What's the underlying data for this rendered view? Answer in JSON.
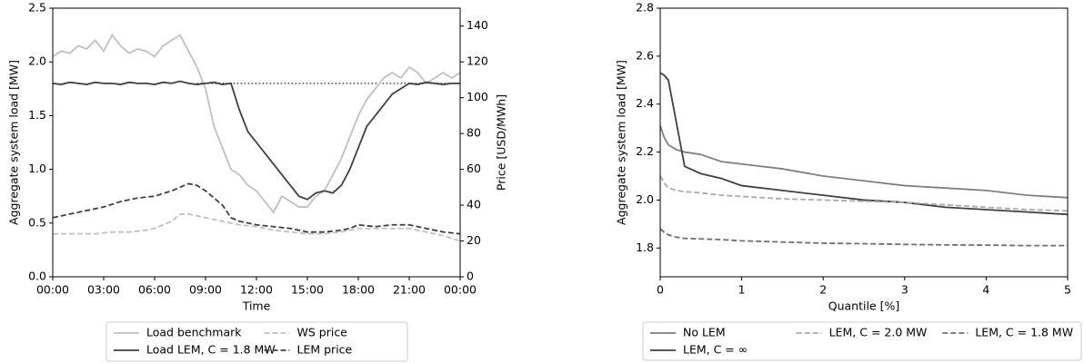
{
  "chart_data": [
    {
      "type": "line",
      "x_label": "Time",
      "y_label": "Aggregate system load [MW]",
      "y2_label": "Price [USD/MWh]",
      "x": [
        0,
        0.5,
        1,
        1.5,
        2,
        2.5,
        3,
        3.5,
        4,
        4.5,
        5,
        5.5,
        6,
        6.5,
        7,
        7.5,
        8,
        8.5,
        9,
        9.5,
        10,
        10.5,
        11,
        11.5,
        12,
        12.5,
        13,
        13.5,
        14,
        14.5,
        15,
        15.5,
        16,
        16.5,
        17,
        17.5,
        18,
        18.5,
        19,
        19.5,
        20,
        20.5,
        21,
        21.5,
        22,
        22.5,
        23,
        23.5,
        24
      ],
      "xlim": [
        0,
        24
      ],
      "xticks": [
        {
          "value": 0,
          "label": "00:00"
        },
        {
          "value": 3,
          "label": "03:00"
        },
        {
          "value": 6,
          "label": "06:00"
        },
        {
          "value": 9,
          "label": "09:00"
        },
        {
          "value": 12,
          "label": "12:00"
        },
        {
          "value": 15,
          "label": "15:00"
        },
        {
          "value": 18,
          "label": "18:00"
        },
        {
          "value": 21,
          "label": "21:00"
        },
        {
          "value": 24,
          "label": "00:00"
        }
      ],
      "ylim": [
        0,
        2.5
      ],
      "yticks": [
        {
          "value": 0,
          "label": "0.0"
        },
        0.5,
        {
          "value": 1,
          "label": "1.0"
        },
        1.5,
        {
          "value": 2,
          "label": "2.0"
        },
        2.5
      ],
      "y2lim": [
        0,
        150
      ],
      "y2ticks": [
        0,
        20,
        40,
        60,
        80,
        100,
        120,
        140
      ],
      "hline": {
        "y": 1.8,
        "x": [
          8.5,
          24
        ],
        "style": "dotted",
        "color": "#404040"
      },
      "legend": "below",
      "series": [
        {
          "name": "Load benchmark",
          "color": "#c0c0c0",
          "dash": false,
          "axis": "y",
          "values": [
            2.05,
            2.1,
            2.08,
            2.15,
            2.12,
            2.2,
            2.1,
            2.25,
            2.15,
            2.08,
            2.12,
            2.1,
            2.05,
            2.15,
            2.2,
            2.25,
            2.1,
            1.95,
            1.75,
            1.4,
            1.2,
            1.0,
            0.95,
            0.85,
            0.8,
            0.7,
            0.6,
            0.75,
            0.7,
            0.65,
            0.65,
            0.75,
            0.8,
            0.95,
            1.1,
            1.3,
            1.5,
            1.65,
            1.75,
            1.85,
            1.9,
            1.85,
            1.95,
            1.9,
            1.8,
            1.85,
            1.9,
            1.85,
            1.9
          ]
        },
        {
          "name": "Load LEM, C = 1.8 MW",
          "color": "#404040",
          "dash": false,
          "axis": "y",
          "values": [
            1.8,
            1.79,
            1.81,
            1.8,
            1.79,
            1.81,
            1.8,
            1.8,
            1.79,
            1.81,
            1.8,
            1.8,
            1.79,
            1.81,
            1.8,
            1.82,
            1.8,
            1.79,
            1.8,
            1.81,
            1.79,
            1.8,
            1.55,
            1.35,
            1.25,
            1.15,
            1.05,
            0.95,
            0.85,
            0.75,
            0.72,
            0.78,
            0.8,
            0.78,
            0.85,
            1.0,
            1.2,
            1.4,
            1.5,
            1.6,
            1.7,
            1.75,
            1.8,
            1.79,
            1.81,
            1.8,
            1.79,
            1.8,
            1.8
          ]
        },
        {
          "name": "WS price",
          "color": "#c0c0c0",
          "dash": true,
          "axis": "y2",
          "values": [
            24,
            24,
            24,
            24,
            24,
            24,
            24.5,
            25,
            25,
            25,
            25.5,
            26,
            27,
            29,
            31,
            35,
            35,
            34,
            33,
            32,
            31,
            30,
            29,
            28.5,
            28,
            27,
            26,
            25.5,
            25,
            24.5,
            24,
            24,
            24,
            24.5,
            25,
            26,
            27,
            27,
            27,
            27,
            27,
            27,
            27,
            26,
            25,
            24,
            23,
            21.5,
            20
          ]
        },
        {
          "name": "LEM price",
          "color": "#404040",
          "dash": true,
          "axis": "y2",
          "values": [
            33,
            34,
            35,
            36,
            37,
            38,
            39,
            40.5,
            42,
            43,
            44,
            44.5,
            45,
            46.5,
            48,
            50,
            52,
            51,
            48,
            44,
            40,
            33,
            31,
            30,
            29,
            28.5,
            28,
            27.5,
            27,
            26,
            25,
            25,
            25,
            25.5,
            26,
            27,
            29,
            28.5,
            28,
            28.5,
            29,
            29,
            29,
            28,
            27,
            26,
            25,
            24.5,
            24
          ]
        }
      ]
    },
    {
      "type": "line",
      "x_label": "Quantile [%]",
      "y_label": "Aggregate system load [MW]",
      "x": [
        0,
        0.05,
        0.1,
        0.2,
        0.3,
        0.5,
        0.75,
        1,
        1.5,
        2,
        2.5,
        3,
        3.5,
        4,
        4.5,
        5
      ],
      "xlim": [
        0,
        5
      ],
      "xticks": [
        0,
        1,
        2,
        3,
        4,
        5
      ],
      "ylim": [
        1.68,
        2.8
      ],
      "yticks": [
        1.8,
        {
          "value": 2,
          "label": "2.0"
        },
        2.2,
        2.4,
        2.6,
        2.8
      ],
      "legend": "below",
      "series": [
        {
          "name": "No LEM",
          "color": "#808080",
          "dash": false,
          "values": [
            2.31,
            2.26,
            2.23,
            2.21,
            2.2,
            2.19,
            2.16,
            2.15,
            2.13,
            2.1,
            2.08,
            2.06,
            2.05,
            2.04,
            2.02,
            2.01
          ]
        },
        {
          "name": "LEM, C = ∞",
          "color": "#404040",
          "dash": false,
          "values": [
            2.53,
            2.52,
            2.5,
            2.32,
            2.14,
            2.11,
            2.09,
            2.06,
            2.04,
            2.02,
            2.0,
            1.99,
            1.97,
            1.96,
            1.95,
            1.94
          ]
        },
        {
          "name": "LEM, C = 2.0 MW",
          "color": "#aaaaaa",
          "dash": true,
          "values": [
            2.1,
            2.07,
            2.05,
            2.04,
            2.035,
            2.03,
            2.02,
            2.015,
            2.005,
            2.0,
            1.995,
            1.99,
            1.98,
            1.97,
            1.96,
            1.955
          ]
        },
        {
          "name": "LEM, C = 1.8 MW",
          "color": "#707070",
          "dash": true,
          "values": [
            1.88,
            1.865,
            1.855,
            1.845,
            1.84,
            1.838,
            1.835,
            1.83,
            1.825,
            1.82,
            1.818,
            1.815,
            1.813,
            1.812,
            1.81,
            1.81
          ]
        }
      ]
    }
  ]
}
